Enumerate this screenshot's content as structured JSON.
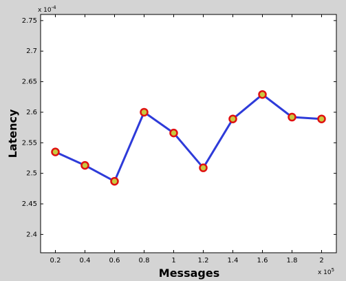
{
  "chart_data": {
    "type": "line",
    "xlabel": "Messages",
    "ylabel": "Latency",
    "x_multiplier": "x 10",
    "x_exponent": "5",
    "y_multiplier": "x 10",
    "y_exponent": "-4",
    "x": [
      0.2,
      0.4,
      0.6,
      0.8,
      1.0,
      1.2,
      1.4,
      1.6,
      1.8,
      2.0
    ],
    "series": [
      {
        "values": [
          2.535,
          2.513,
          2.487,
          2.6,
          2.566,
          2.509,
          2.589,
          2.629,
          2.592,
          2.589
        ]
      }
    ],
    "xlim": [
      0.1,
      2.1
    ],
    "ylim": [
      2.37,
      2.76
    ],
    "xticks": [
      0.2,
      0.4,
      0.6,
      0.8,
      1,
      1.2,
      1.4,
      1.6,
      1.8,
      2
    ],
    "yticks": [
      2.4,
      2.45,
      2.5,
      2.55,
      2.6,
      2.65,
      2.7,
      2.75
    ],
    "grid": false,
    "line_color": "#2e3bd9",
    "marker_edge_color": "#e01010",
    "marker_face_color": "#c8c840",
    "figure_background": "#d4d4d4",
    "axes_background": "#ffffff"
  }
}
